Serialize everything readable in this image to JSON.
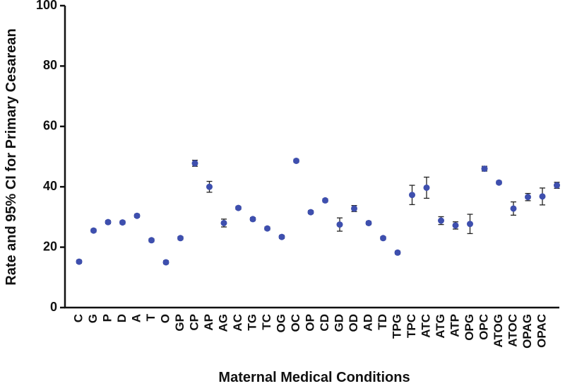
{
  "chart_data": {
    "type": "dot-error",
    "xlabel": "Maternal Medical Conditions",
    "ylabel": "Rate and 95% CI for Primary Cesarean",
    "categories": [
      "C",
      "G",
      "P",
      "D",
      "A",
      "T",
      "O",
      "GP",
      "CP",
      "AP",
      "AG",
      "AC",
      "TG",
      "TC",
      "OG",
      "OC",
      "OP",
      "CD",
      "GD",
      "OD",
      "AD",
      "TD",
      "TPG",
      "TPC",
      "ATC",
      "ATG",
      "ATP",
      "OPG",
      "OPC",
      "ATOG",
      "ATOC",
      "OPAG",
      "OPAC",
      null
    ],
    "values": [
      15.2,
      25.5,
      28.3,
      28.2,
      30.4,
      22.3,
      15,
      23,
      47.8,
      40,
      28,
      33,
      29.3,
      26.2,
      23.4,
      48.6,
      31.6,
      35.5,
      27.5,
      32.8,
      28,
      23,
      18.2,
      37.3,
      39.7,
      28.8,
      27.2,
      27.7,
      46,
      41.4,
      32.8,
      36.6,
      36.8,
      40.5
    ],
    "errors": [
      0.5,
      0.5,
      0.5,
      0.5,
      0.5,
      0.5,
      0.5,
      0.5,
      1,
      1.8,
      1.3,
      0.5,
      0.5,
      0.5,
      0.5,
      0.5,
      0.5,
      0.5,
      2.2,
      1,
      0.5,
      0.5,
      0.5,
      3.2,
      3.5,
      1.3,
      1.2,
      3.2,
      0.8,
      0.5,
      2.2,
      1.2,
      2.8,
      1
    ],
    "color": "#3e4fae",
    "ylim": [
      0,
      100
    ],
    "yticks": [
      0,
      20,
      40,
      60,
      80,
      100
    ]
  }
}
